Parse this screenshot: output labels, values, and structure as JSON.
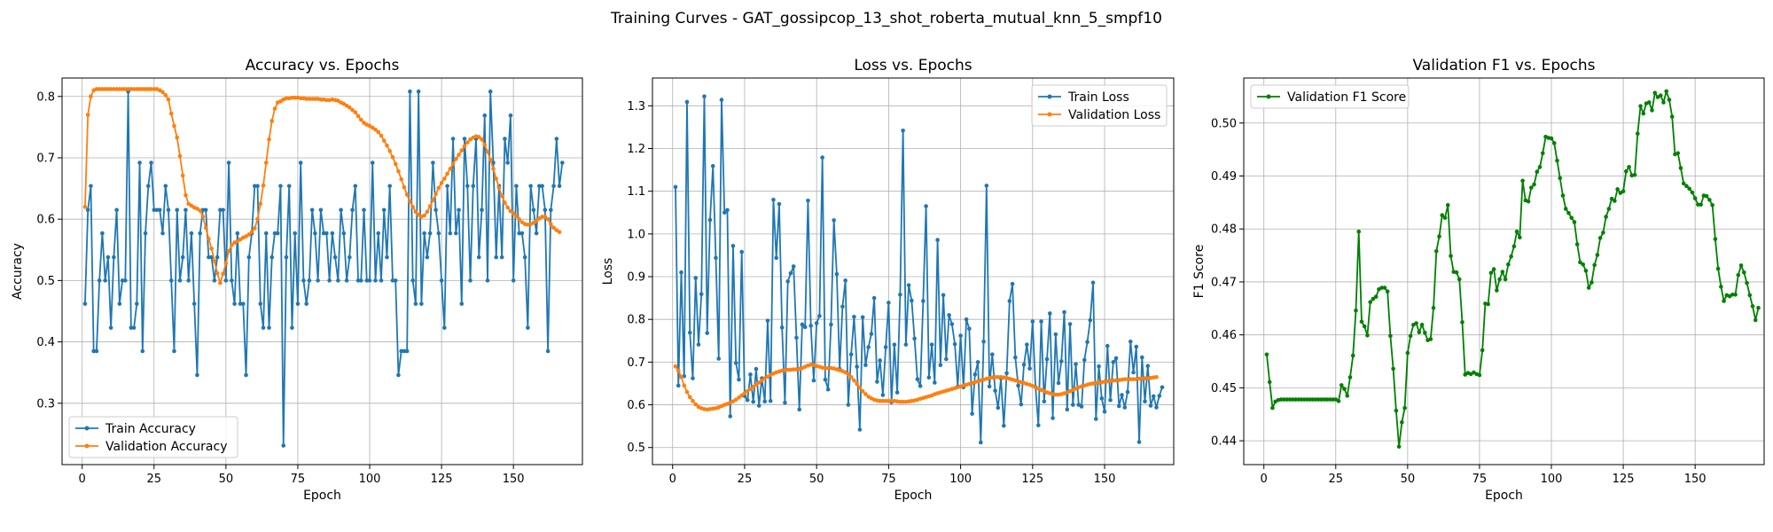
{
  "figure": {
    "suptitle": "Training Curves - GAT_gossipcop_13_shot_roberta_mutual_knn_5_smpf10"
  },
  "colors": {
    "train": "#1f77b4",
    "validation": "#ff7f0e",
    "f1": "#008000",
    "grid": "#b0b0b0",
    "axes": "#000000"
  },
  "chart_data": [
    {
      "type": "line",
      "title": "Accuracy vs. Epochs",
      "xlabel": "Epoch",
      "ylabel": "Accuracy",
      "xlim": [
        -7,
        174
      ],
      "ylim": [
        0.2,
        0.83
      ],
      "xticks": [
        0,
        25,
        50,
        75,
        100,
        125,
        150
      ],
      "yticks": [
        0.3,
        0.4,
        0.5,
        0.6,
        0.7,
        0.8
      ],
      "yticks_fmt": 1,
      "grid": true,
      "legend": "lower left",
      "series": [
        {
          "name": "Train Accuracy",
          "color": "#1f77b4",
          "values": [
            0.462,
            0.615,
            0.654,
            0.385,
            0.385,
            0.5,
            0.577,
            0.5,
            0.538,
            0.423,
            0.538,
            0.615,
            0.462,
            0.5,
            0.5,
            0.808,
            0.423,
            0.423,
            0.462,
            0.692,
            0.385,
            0.577,
            0.654,
            0.692,
            0.615,
            0.615,
            0.615,
            0.577,
            0.654,
            0.615,
            0.5,
            0.385,
            0.615,
            0.5,
            0.538,
            0.615,
            0.5,
            0.577,
            0.462,
            0.346,
            0.577,
            0.615,
            0.615,
            0.538,
            0.538,
            0.5,
            0.538,
            0.615,
            0.615,
            0.5,
            0.692,
            0.5,
            0.462,
            0.577,
            0.462,
            0.462,
            0.346,
            0.538,
            0.577,
            0.654,
            0.654,
            0.462,
            0.423,
            0.577,
            0.423,
            0.538,
            0.577,
            0.577,
            0.654,
            0.231,
            0.538,
            0.654,
            0.423,
            0.577,
            0.462,
            0.692,
            0.5,
            0.462,
            0.5,
            0.615,
            0.577,
            0.5,
            0.615,
            0.577,
            0.577,
            0.5,
            0.577,
            0.538,
            0.5,
            0.615,
            0.577,
            0.5,
            0.538,
            0.615,
            0.654,
            0.5,
            0.5,
            0.615,
            0.5,
            0.5,
            0.692,
            0.5,
            0.577,
            0.5,
            0.615,
            0.538,
            0.654,
            0.5,
            0.5,
            0.346,
            0.385,
            0.385,
            0.385,
            0.808,
            0.5,
            0.462,
            0.808,
            0.462,
            0.577,
            0.538,
            0.577,
            0.692,
            0.615,
            0.577,
            0.5,
            0.423,
            0.654,
            0.577,
            0.731,
            0.577,
            0.615,
            0.462,
            0.731,
            0.654,
            0.5,
            0.654,
            0.731,
            0.538,
            0.615,
            0.769,
            0.5,
            0.808,
            0.692,
            0.538,
            0.654,
            0.538,
            0.731,
            0.692,
            0.769,
            0.5,
            0.654,
            0.577,
            0.577,
            0.538,
            0.423,
            0.654,
            0.615,
            0.577,
            0.654,
            0.654,
            0.615,
            0.385,
            0.615,
            0.654,
            0.731,
            0.654,
            0.692
          ]
        },
        {
          "name": "Validation Accuracy",
          "color": "#ff7f0e",
          "values": [
            0.62,
            0.77,
            0.8,
            0.81,
            0.812,
            0.812,
            0.812,
            0.812,
            0.812,
            0.812,
            0.812,
            0.812,
            0.812,
            0.812,
            0.812,
            0.812,
            0.812,
            0.812,
            0.812,
            0.812,
            0.812,
            0.812,
            0.812,
            0.812,
            0.812,
            0.812,
            0.81,
            0.807,
            0.802,
            0.795,
            0.772,
            0.752,
            0.733,
            0.703,
            0.671,
            0.639,
            0.625,
            0.622,
            0.619,
            0.617,
            0.614,
            0.604,
            0.586,
            0.568,
            0.552,
            0.532,
            0.512,
            0.496,
            0.511,
            0.528,
            0.548,
            0.558,
            0.562,
            0.564,
            0.567,
            0.57,
            0.572,
            0.575,
            0.579,
            0.585,
            0.6,
            0.625,
            0.655,
            0.692,
            0.73,
            0.76,
            0.78,
            0.79,
            0.792,
            0.795,
            0.797,
            0.797,
            0.798,
            0.798,
            0.798,
            0.797,
            0.797,
            0.796,
            0.796,
            0.796,
            0.796,
            0.796,
            0.795,
            0.795,
            0.794,
            0.794,
            0.795,
            0.794,
            0.793,
            0.79,
            0.788,
            0.785,
            0.782,
            0.778,
            0.774,
            0.768,
            0.762,
            0.757,
            0.754,
            0.752,
            0.749,
            0.746,
            0.742,
            0.736,
            0.728,
            0.72,
            0.711,
            0.701,
            0.69,
            0.678,
            0.665,
            0.652,
            0.64,
            0.629,
            0.62,
            0.612,
            0.607,
            0.604,
            0.606,
            0.612,
            0.621,
            0.631,
            0.641,
            0.651,
            0.659,
            0.666,
            0.674,
            0.682,
            0.69,
            0.698,
            0.705,
            0.712,
            0.719,
            0.725,
            0.73,
            0.733,
            0.735,
            0.734,
            0.73,
            0.721,
            0.71,
            0.697,
            0.682,
            0.666,
            0.651,
            0.638,
            0.627,
            0.619,
            0.613,
            0.609,
            0.605,
            0.6,
            0.595,
            0.592,
            0.591,
            0.592,
            0.594,
            0.597,
            0.601,
            0.604,
            0.604,
            0.6,
            0.592,
            0.586,
            0.582,
            0.579
          ]
        }
      ]
    },
    {
      "type": "line",
      "title": "Loss vs. Epochs",
      "xlabel": "Epoch",
      "ylabel": "Loss",
      "xlim": [
        -7,
        174
      ],
      "ylim": [
        0.46,
        1.365
      ],
      "xticks": [
        0,
        25,
        50,
        75,
        100,
        125,
        150
      ],
      "yticks": [
        0.5,
        0.6,
        0.7,
        0.8,
        0.9,
        1.0,
        1.1,
        1.2,
        1.3
      ],
      "yticks_fmt": 1,
      "grid": true,
      "legend": "upper right",
      "series": [
        {
          "name": "Train Loss",
          "color": "#1f77b4",
          "values": [
            1.11,
            0.645,
            0.91,
            0.667,
            1.309,
            0.769,
            0.662,
            0.897,
            0.741,
            0.859,
            1.322,
            0.768,
            1.033,
            1.159,
            0.944,
            0.708,
            1.314,
            1.05,
            1.056,
            0.573,
            0.972,
            0.698,
            0.659,
            0.958,
            0.621,
            0.611,
            0.671,
            0.607,
            0.684,
            0.598,
            0.662,
            0.608,
            0.797,
            0.609,
            1.08,
            0.944,
            1.07,
            0.781,
            0.605,
            0.889,
            0.908,
            0.924,
            0.757,
            0.589,
            0.788,
            0.782,
            1.078,
            0.785,
            0.657,
            0.791,
            0.808,
            1.179,
            0.659,
            0.636,
            0.788,
            1.032,
            0.906,
            0.684,
            0.83,
            0.891,
            0.6,
            0.718,
            0.806,
            0.689,
            0.542,
            0.805,
            0.693,
            0.735,
            0.766,
            0.85,
            0.654,
            0.704,
            0.623,
            0.735,
            0.839,
            0.606,
            0.741,
            0.629,
            0.858,
            1.242,
            0.741,
            0.88,
            0.844,
            0.755,
            0.66,
            0.644,
            0.843,
            1.065,
            0.664,
            0.741,
            0.652,
            0.986,
            0.693,
            0.857,
            0.707,
            0.81,
            0.789,
            0.742,
            0.643,
            0.762,
            0.641,
            0.8,
            0.778,
            0.579,
            0.671,
            0.7,
            0.512,
            0.748,
            1.113,
            0.643,
            0.718,
            0.633,
            0.593,
            0.662,
            0.551,
            0.674,
            0.843,
            0.883,
            0.711,
            0.645,
            0.601,
            0.694,
            0.741,
            0.685,
            0.795,
            0.642,
            0.552,
            0.795,
            0.608,
            0.707,
            0.814,
            0.569,
            0.765,
            0.651,
            0.702,
            0.817,
            0.589,
            0.789,
            0.6,
            0.695,
            0.6,
            0.596,
            0.705,
            0.747,
            0.798,
            0.886,
            0.567,
            0.69,
            0.615,
            0.584,
            0.738,
            0.611,
            0.7,
            0.709,
            0.597,
            0.623,
            0.594,
            0.63,
            0.748,
            0.676,
            0.736,
            0.513,
            0.711,
            0.608,
            0.691,
            0.598,
            0.62,
            0.594,
            0.621,
            0.641
          ]
        },
        {
          "name": "Validation Loss",
          "color": "#ff7f0e",
          "values": [
            0.69,
            0.68,
            0.665,
            0.645,
            0.63,
            0.618,
            0.609,
            0.601,
            0.595,
            0.592,
            0.59,
            0.589,
            0.59,
            0.591,
            0.592,
            0.594,
            0.597,
            0.6,
            0.602,
            0.605,
            0.608,
            0.612,
            0.617,
            0.622,
            0.627,
            0.632,
            0.637,
            0.642,
            0.647,
            0.652,
            0.657,
            0.662,
            0.666,
            0.67,
            0.673,
            0.676,
            0.678,
            0.68,
            0.681,
            0.682,
            0.682,
            0.683,
            0.683,
            0.684,
            0.686,
            0.689,
            0.692,
            0.694,
            0.693,
            0.691,
            0.689,
            0.687,
            0.686,
            0.686,
            0.686,
            0.685,
            0.683,
            0.681,
            0.679,
            0.676,
            0.671,
            0.665,
            0.657,
            0.649,
            0.64,
            0.632,
            0.625,
            0.619,
            0.615,
            0.612,
            0.61,
            0.609,
            0.609,
            0.609,
            0.609,
            0.609,
            0.609,
            0.608,
            0.607,
            0.607,
            0.607,
            0.608,
            0.609,
            0.61,
            0.612,
            0.614,
            0.616,
            0.618,
            0.62,
            0.622,
            0.625,
            0.627,
            0.629,
            0.631,
            0.633,
            0.635,
            0.637,
            0.639,
            0.641,
            0.643,
            0.645,
            0.647,
            0.649,
            0.651,
            0.653,
            0.655,
            0.657,
            0.659,
            0.661,
            0.663,
            0.664,
            0.665,
            0.665,
            0.665,
            0.664,
            0.663,
            0.661,
            0.659,
            0.657,
            0.655,
            0.653,
            0.651,
            0.649,
            0.647,
            0.644,
            0.641,
            0.638,
            0.635,
            0.632,
            0.629,
            0.627,
            0.625,
            0.624,
            0.624,
            0.625,
            0.627,
            0.629,
            0.632,
            0.635,
            0.638,
            0.641,
            0.643,
            0.645,
            0.647,
            0.649,
            0.65,
            0.651,
            0.652,
            0.653,
            0.654,
            0.655,
            0.656,
            0.657,
            0.657,
            0.658,
            0.659,
            0.66,
            0.66,
            0.66,
            0.66,
            0.66,
            0.661,
            0.661,
            0.662,
            0.662,
            0.663,
            0.664,
            0.665
          ]
        }
      ]
    },
    {
      "type": "line",
      "title": "Validation F1 vs. Epochs",
      "xlabel": "Epoch",
      "ylabel": "F1 Score",
      "xlim": [
        -7,
        174
      ],
      "ylim": [
        0.4355,
        0.5085
      ],
      "xticks": [
        0,
        25,
        50,
        75,
        100,
        125,
        150
      ],
      "yticks": [
        0.44,
        0.45,
        0.46,
        0.47,
        0.48,
        0.49,
        0.5
      ],
      "yticks_fmt": 2,
      "grid": true,
      "legend": "upper left",
      "series": [
        {
          "name": "Validation F1 Score",
          "color": "#008000",
          "values": [
            0.4563,
            0.4511,
            0.4462,
            0.4474,
            0.4477,
            0.4478,
            0.4478,
            0.4478,
            0.4478,
            0.4478,
            0.4478,
            0.4478,
            0.4478,
            0.4478,
            0.4478,
            0.4478,
            0.4478,
            0.4478,
            0.4478,
            0.4478,
            0.4478,
            0.4478,
            0.4478,
            0.4478,
            0.4478,
            0.4475,
            0.4505,
            0.4498,
            0.4485,
            0.452,
            0.4561,
            0.4646,
            0.4795,
            0.4625,
            0.4616,
            0.4599,
            0.4662,
            0.4668,
            0.4672,
            0.4686,
            0.4689,
            0.4689,
            0.4682,
            0.4598,
            0.4536,
            0.4457,
            0.4389,
            0.4435,
            0.4462,
            0.4566,
            0.4598,
            0.4619,
            0.4622,
            0.4605,
            0.4619,
            0.4604,
            0.459,
            0.4592,
            0.4651,
            0.4758,
            0.4786,
            0.4826,
            0.4821,
            0.4845,
            0.4749,
            0.4719,
            0.4718,
            0.4705,
            0.4624,
            0.4525,
            0.4528,
            0.4526,
            0.4529,
            0.4526,
            0.4524,
            0.4571,
            0.4659,
            0.4658,
            0.4717,
            0.4724,
            0.4684,
            0.4705,
            0.4719,
            0.4705,
            0.4733,
            0.4748,
            0.4767,
            0.4795,
            0.4784,
            0.4891,
            0.4854,
            0.4852,
            0.4878,
            0.4884,
            0.4908,
            0.4917,
            0.4943,
            0.4974,
            0.4972,
            0.4971,
            0.4962,
            0.4929,
            0.4896,
            0.4863,
            0.4838,
            0.483,
            0.4821,
            0.4813,
            0.4771,
            0.4737,
            0.4733,
            0.4721,
            0.4689,
            0.4699,
            0.4732,
            0.4751,
            0.4783,
            0.4793,
            0.4823,
            0.4838,
            0.4857,
            0.4853,
            0.4875,
            0.4868,
            0.4871,
            0.4909,
            0.4917,
            0.4901,
            0.4902,
            0.498,
            0.5032,
            0.5018,
            0.5037,
            0.5039,
            0.5024,
            0.5057,
            0.5049,
            0.5052,
            0.5039,
            0.506,
            0.5044,
            0.5012,
            0.4941,
            0.4943,
            0.4915,
            0.4886,
            0.4881,
            0.4876,
            0.4869,
            0.4858,
            0.4846,
            0.4846,
            0.4863,
            0.4862,
            0.4855,
            0.4845,
            0.4781,
            0.4725,
            0.4691,
            0.4664,
            0.4675,
            0.4673,
            0.4676,
            0.4676,
            0.4713,
            0.4731,
            0.4718,
            0.4698,
            0.4675,
            0.4654,
            0.4628,
            0.4651
          ]
        }
      ]
    }
  ]
}
